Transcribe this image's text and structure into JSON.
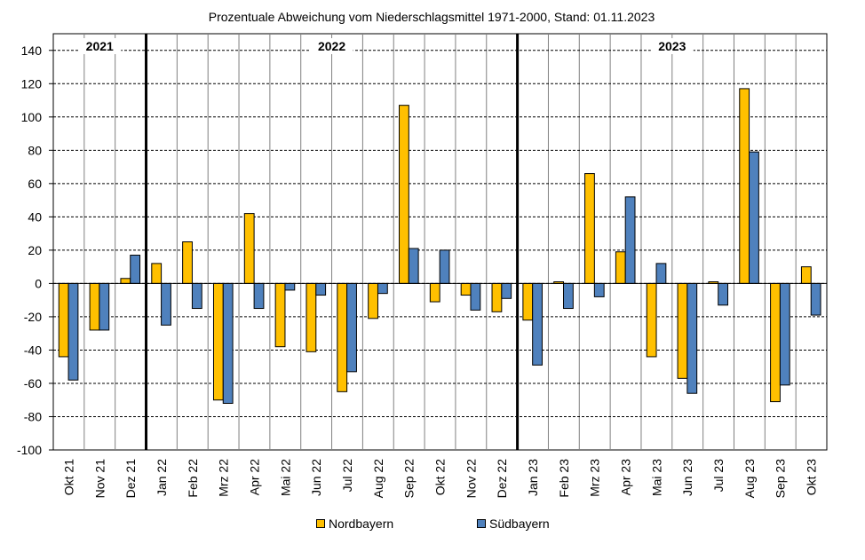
{
  "chart_data": {
    "type": "bar",
    "title": "Prozentuale  Abweichung vom Niederschlagsmittel 1971-2000,  Stand:  01.11.2023",
    "categories": [
      "Okt 21",
      "Nov 21",
      "Dez 21",
      "Jan 22",
      "Feb 22",
      "Mrz 22",
      "Apr 22",
      "Mai 22",
      "Jun 22",
      "Jul 22",
      "Aug 22",
      "Sep 22",
      "Okt 22",
      "Nov 22",
      "Dez 22",
      "Jan 23",
      "Feb 23",
      "Mrz 23",
      "Apr 23",
      "Mai 23",
      "Jun 23",
      "Jul 23",
      "Aug 23",
      "Sep 23",
      "Okt 23"
    ],
    "series": [
      {
        "name": "Nordbayern",
        "color": "#FFC000",
        "values": [
          -44,
          -28,
          3,
          12,
          25,
          -70,
          42,
          -38,
          -41,
          -65,
          -21,
          107,
          -11,
          -7,
          -17,
          -22,
          1,
          66,
          19,
          -44,
          -57,
          1,
          117,
          -71,
          10
        ]
      },
      {
        "name": "Südbayern",
        "color": "#4F81BD",
        "values": [
          -58,
          -28,
          17,
          -25,
          -15,
          -72,
          -15,
          -4,
          -7,
          -53,
          -6,
          21,
          20,
          -16,
          -9,
          -49,
          -15,
          -8,
          52,
          12,
          -66,
          -13,
          79,
          -61,
          -19
        ]
      }
    ],
    "ylim": [
      -100,
      150
    ],
    "yticks": [
      -100,
      -80,
      -60,
      -40,
      -20,
      0,
      20,
      40,
      60,
      80,
      100,
      120,
      140
    ],
    "year_labels": [
      {
        "label": "2021",
        "start": 0,
        "end": 2
      },
      {
        "label": "2022",
        "start": 3,
        "end": 14
      },
      {
        "label": "2023",
        "start": 15,
        "end": 24
      }
    ],
    "grid": true,
    "legend_position": "bottom"
  },
  "colors": {
    "nordbayern": "#FFC000",
    "suedbayern": "#4F81BD",
    "grid": "#000000"
  }
}
